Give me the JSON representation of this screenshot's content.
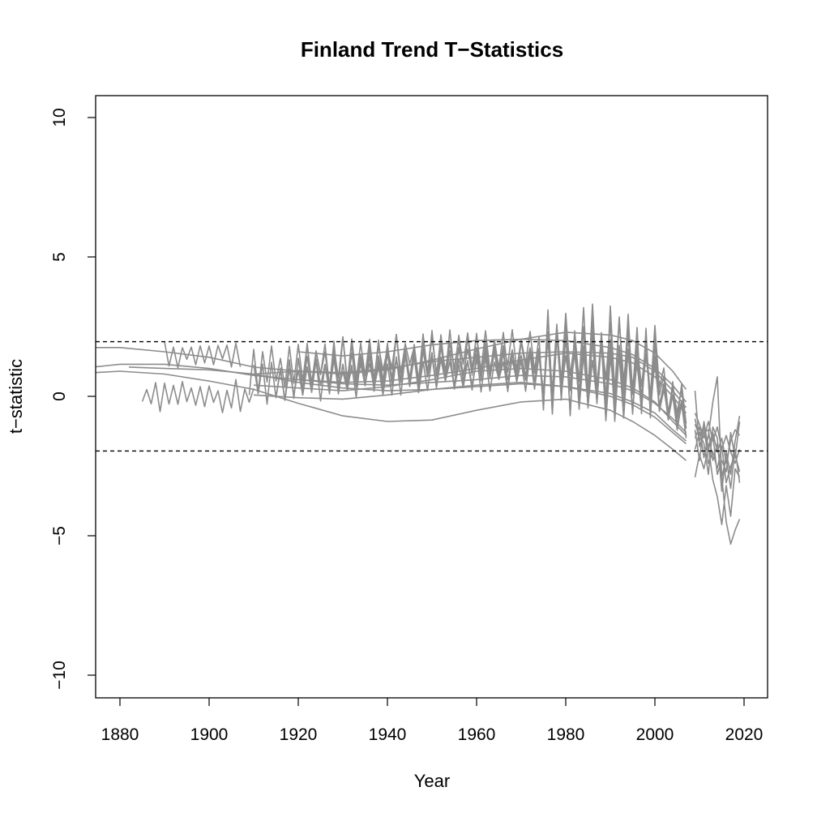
{
  "chart_data": {
    "type": "line",
    "title": "Finland Trend T−Statistics",
    "xlabel": "Year",
    "ylabel": "t−statistic",
    "xlim": [
      1875,
      2027
    ],
    "ylim": [
      -11,
      10.5
    ],
    "x_ticks": [
      {
        "value": 1880,
        "label": "1880"
      },
      {
        "value": 1900,
        "label": "1900"
      },
      {
        "value": 1920,
        "label": "1920"
      },
      {
        "value": 1940,
        "label": "1940"
      },
      {
        "value": 1960,
        "label": "1960"
      },
      {
        "value": 1980,
        "label": "1980"
      },
      {
        "value": 2000,
        "label": "2000"
      },
      {
        "value": 2020,
        "label": "2020"
      }
    ],
    "y_ticks": [
      {
        "value": -10,
        "label": "−10"
      },
      {
        "value": -5,
        "label": "−5"
      },
      {
        "value": 0,
        "label": "0"
      },
      {
        "value": 5,
        "label": "5"
      },
      {
        "value": 10,
        "label": "10"
      }
    ],
    "reference_lines": [
      1.96,
      -1.96
    ],
    "reference_style": "dashed",
    "grid": false,
    "legend": "none",
    "line_color": "#8c8c8c",
    "series": [
      {
        "x": [
          1874,
          1880,
          1890,
          1900,
          1910,
          1920,
          1930,
          1940,
          1950,
          1960,
          1970,
          1980,
          1990,
          1995,
          2000,
          2004,
          2007
        ],
        "y": [
          1.75,
          1.75,
          1.6,
          1.4,
          1.05,
          0.9,
          0.8,
          0.95,
          1.3,
          1.7,
          2.05,
          2.3,
          2.2,
          2.0,
          1.55,
          0.9,
          0.25
        ]
      },
      {
        "x": [
          1874,
          1880,
          1890,
          1900,
          1910,
          1920,
          1930,
          1940,
          1950,
          1960,
          1970,
          1980,
          1990,
          1995,
          2000,
          2004,
          2007
        ],
        "y": [
          1.05,
          1.15,
          1.15,
          1.0,
          0.75,
          0.6,
          0.5,
          0.55,
          0.75,
          1.0,
          1.3,
          1.55,
          1.4,
          1.2,
          0.7,
          0.0,
          -0.6
        ]
      },
      {
        "x": [
          1874,
          1880,
          1890,
          1900,
          1910,
          1920,
          1930,
          1940,
          1950,
          1960,
          1970,
          1980,
          1990,
          1995,
          2000,
          2004,
          2007
        ],
        "y": [
          0.85,
          0.9,
          0.8,
          0.55,
          0.25,
          -0.25,
          -0.7,
          -0.9,
          -0.85,
          -0.5,
          -0.2,
          -0.1,
          -0.5,
          -0.9,
          -1.4,
          -1.9,
          -2.3
        ]
      },
      {
        "x": [
          1882,
          1890,
          1900,
          1910,
          1920,
          1930,
          1940,
          1950,
          1960,
          1970,
          1980,
          1990,
          1995,
          2000,
          2004,
          2007
        ],
        "y": [
          1.05,
          1.0,
          0.95,
          0.8,
          0.5,
          0.3,
          0.2,
          0.25,
          0.4,
          0.5,
          0.35,
          0.0,
          -0.3,
          -0.75,
          -1.3,
          -1.7
        ]
      },
      {
        "x": [
          1910,
          1920,
          1930,
          1940,
          1950,
          1960,
          1970,
          1980,
          1990,
          1995,
          2000,
          2004,
          2007
        ],
        "y": [
          0.4,
          0.3,
          0.2,
          0.35,
          0.6,
          0.9,
          1.0,
          0.9,
          0.6,
          0.3,
          -0.2,
          -0.9,
          -1.4
        ]
      },
      {
        "x": [
          1910,
          1920,
          1930,
          1940,
          1950,
          1960,
          1970,
          1980,
          1990,
          1995,
          2000,
          2004,
          2007
        ],
        "y": [
          0.8,
          0.9,
          0.85,
          1.0,
          1.25,
          1.4,
          1.55,
          1.6,
          1.55,
          1.4,
          0.9,
          0.2,
          -0.4
        ]
      },
      {
        "x": [
          1910,
          1920,
          1930,
          1940,
          1950,
          1960,
          1970,
          1980,
          1990,
          1995,
          2000,
          2004,
          2007
        ],
        "y": [
          0.05,
          -0.05,
          -0.1,
          0.05,
          0.25,
          0.35,
          0.45,
          0.35,
          0.1,
          -0.2,
          -0.6,
          -1.2,
          -1.6
        ]
      },
      {
        "x": [
          1920,
          1930,
          1940,
          1950,
          1960,
          1970,
          1980,
          1990,
          1995,
          2000,
          2004,
          2007
        ],
        "y": [
          1.6,
          1.45,
          1.6,
          1.85,
          2.0,
          2.05,
          2.0,
          1.75,
          1.5,
          1.0,
          0.4,
          -0.2
        ]
      },
      {
        "x": [
          1920,
          1930,
          1940,
          1950,
          1960,
          1970,
          1980,
          1990,
          1995,
          2000,
          2004,
          2007
        ],
        "y": [
          0.6,
          0.45,
          0.4,
          0.5,
          0.6,
          0.75,
          0.7,
          0.45,
          0.2,
          -0.25,
          -0.8,
          -1.3
        ]
      }
    ],
    "noisy_series": [
      {
        "start": 1910,
        "end": 2007,
        "base": 0.5,
        "amp": 0.6,
        "late_amp": 1.3
      },
      {
        "start": 1909,
        "end": 2007,
        "base": 0.8,
        "amp": 0.7,
        "late_amp": 1.5
      },
      {
        "start": 1915,
        "end": 2007,
        "base": 0.3,
        "amp": 0.55,
        "late_amp": 1.2
      },
      {
        "start": 1920,
        "end": 2007,
        "base": 0.9,
        "amp": 0.65,
        "late_amp": 1.4
      },
      {
        "start": 1885,
        "end": 1910,
        "base": 0.0,
        "amp": 0.45,
        "late_amp": 0.45
      },
      {
        "start": 1890,
        "end": 1907,
        "base": 1.5,
        "amp": 0.35,
        "late_amp": 0.35
      },
      {
        "start": 1930,
        "end": 2007,
        "base": 0.4,
        "amp": 0.5,
        "late_amp": 1.1
      }
    ],
    "late_series": [
      {
        "x": [
          2009,
          2010,
          2011,
          2012,
          2013,
          2014,
          2015,
          2016,
          2017,
          2018,
          2019
        ],
        "y": [
          -1.0,
          -1.4,
          -1.2,
          -1.8,
          -1.3,
          -2.0,
          -1.5,
          -2.4,
          -1.6,
          -1.2,
          -1.4
        ]
      },
      {
        "x": [
          2009,
          2010,
          2011,
          2012,
          2013,
          2014,
          2015,
          2016,
          2017,
          2018,
          2019
        ],
        "y": [
          -2.9,
          -2.1,
          -2.6,
          -1.8,
          -3.0,
          -3.6,
          -4.6,
          -3.2,
          -4.3,
          -2.6,
          -2.9
        ]
      },
      {
        "x": [
          2009,
          2010,
          2011,
          2012,
          2013,
          2014,
          2015,
          2016,
          2017,
          2018,
          2019
        ],
        "y": [
          -1.5,
          -1.1,
          -2.2,
          -1.4,
          -0.2,
          0.7,
          -2.9,
          -4.5,
          -5.3,
          -4.8,
          -4.4
        ]
      },
      {
        "x": [
          2009,
          2010,
          2011,
          2012,
          2013,
          2014,
          2015,
          2016,
          2017,
          2018,
          2019
        ],
        "y": [
          -0.8,
          -1.6,
          -1.0,
          -2.4,
          -2.0,
          -2.6,
          -1.8,
          -3.1,
          -2.5,
          -2.1,
          -2.7
        ]
      },
      {
        "x": [
          2009,
          2010,
          2011,
          2012,
          2013,
          2014,
          2015,
          2016,
          2017,
          2018,
          2019
        ],
        "y": [
          0.2,
          -1.8,
          -1.3,
          -1.2,
          -2.3,
          -1.7,
          -2.9,
          -2.2,
          -3.3,
          -1.9,
          -3.1
        ]
      },
      {
        "x": [
          2009,
          2010,
          2011,
          2012,
          2013,
          2014,
          2015,
          2016,
          2017,
          2018,
          2019
        ],
        "y": [
          -1.2,
          -2.3,
          -0.9,
          -1.9,
          -1.4,
          -2.8,
          -2.3,
          -2.7,
          -1.3,
          -2.2,
          -0.9
        ]
      },
      {
        "x": [
          2009,
          2010,
          2011,
          2012,
          2013,
          2014,
          2015,
          2016,
          2017,
          2018,
          2019
        ],
        "y": [
          -1.9,
          -1.3,
          -1.7,
          -2.8,
          -1.1,
          -1.5,
          -3.4,
          -2.0,
          -2.8,
          -1.6,
          -0.7
        ]
      },
      {
        "x": [
          2009,
          2010,
          2011,
          2012,
          2013,
          2014,
          2015,
          2016,
          2017,
          2018,
          2019
        ],
        "y": [
          -0.6,
          -1.0,
          -1.5,
          -0.9,
          -1.6,
          -1.1,
          -1.9,
          -1.4,
          -2.0,
          -2.4,
          -1.9
        ]
      }
    ]
  }
}
